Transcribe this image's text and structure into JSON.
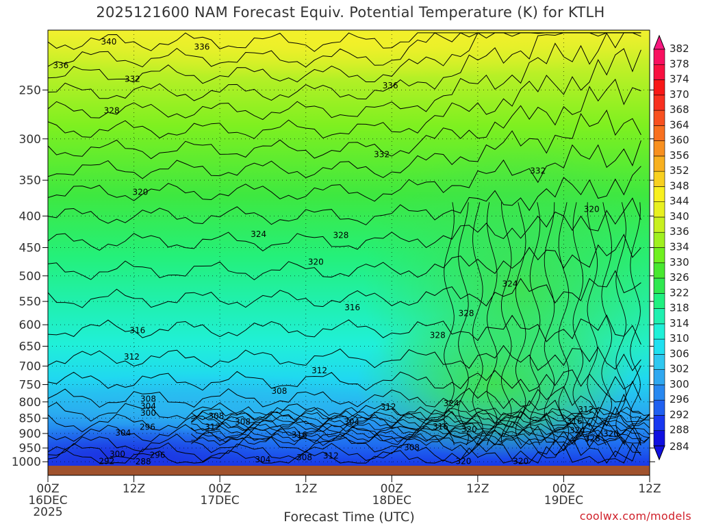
{
  "chart_data": {
    "type": "heatmap",
    "title": "2025121600 NAM Forecast Equiv. Potential Temperature (K) for KTLH",
    "xlabel": "Forecast Time (UTC)",
    "ylabel": "",
    "credit": "coolwx.com/models",
    "x_ticks": [
      {
        "hour": 0,
        "lines": [
          "00Z",
          "16DEC",
          "2025"
        ]
      },
      {
        "hour": 12,
        "lines": [
          "12Z"
        ]
      },
      {
        "hour": 24,
        "lines": [
          "00Z",
          "17DEC"
        ]
      },
      {
        "hour": 36,
        "lines": [
          "12Z"
        ]
      },
      {
        "hour": 48,
        "lines": [
          "00Z",
          "18DEC"
        ]
      },
      {
        "hour": 60,
        "lines": [
          "12Z"
        ]
      },
      {
        "hour": 72,
        "lines": [
          "00Z",
          "19DEC"
        ]
      },
      {
        "hour": 84,
        "lines": [
          "12Z"
        ]
      }
    ],
    "xlim": [
      0,
      84
    ],
    "y_ticks": [
      250,
      300,
      350,
      400,
      450,
      500,
      550,
      600,
      650,
      700,
      750,
      800,
      850,
      900,
      950,
      1000
    ],
    "ylim": [
      1015,
      200
    ],
    "y_scale": "log",
    "grid": true,
    "colorbar_levels": [
      284,
      288,
      292,
      296,
      300,
      302,
      306,
      310,
      314,
      318,
      322,
      326,
      330,
      334,
      336,
      340,
      344,
      348,
      352,
      356,
      360,
      364,
      368,
      370,
      374,
      378,
      382
    ],
    "colorbar_colors": [
      "#1010e0",
      "#1838f0",
      "#2060f0",
      "#2888f0",
      "#30a8f0",
      "#30c8f0",
      "#20e0f0",
      "#20f0d8",
      "#20f0b0",
      "#20f080",
      "#30e850",
      "#48e830",
      "#70f020",
      "#a0f020",
      "#c8f020",
      "#e8f020",
      "#f8f020",
      "#f8d020",
      "#f8b020",
      "#f89020",
      "#f87020",
      "#f85020",
      "#f83020",
      "#f81818",
      "#f81040",
      "#f81060",
      "#f81880"
    ],
    "contour_labels": [
      {
        "text": "340",
        "hour": 8.5,
        "p": 209
      },
      {
        "text": "336",
        "hour": 21.5,
        "p": 213
      },
      {
        "text": "336",
        "hour": 1.8,
        "p": 228
      },
      {
        "text": "332",
        "hour": 11.8,
        "p": 240
      },
      {
        "text": "336",
        "hour": 47.8,
        "p": 246
      },
      {
        "text": "328",
        "hour": 8.9,
        "p": 270
      },
      {
        "text": "332",
        "hour": 46.6,
        "p": 318
      },
      {
        "text": "332",
        "hour": 68.4,
        "p": 338
      },
      {
        "text": "320",
        "hour": 12.9,
        "p": 366
      },
      {
        "text": "320",
        "hour": 75.9,
        "p": 390
      },
      {
        "text": "324",
        "hour": 29.4,
        "p": 428
      },
      {
        "text": "328",
        "hour": 40.9,
        "p": 430
      },
      {
        "text": "320",
        "hour": 37.4,
        "p": 475
      },
      {
        "text": "324",
        "hour": 64.5,
        "p": 515
      },
      {
        "text": "328",
        "hour": 58.4,
        "p": 575
      },
      {
        "text": "316",
        "hour": 42.5,
        "p": 563
      },
      {
        "text": "316",
        "hour": 12.5,
        "p": 613
      },
      {
        "text": "328",
        "hour": 54.4,
        "p": 624
      },
      {
        "text": "312",
        "hour": 11.7,
        "p": 676
      },
      {
        "text": "312",
        "hour": 37.9,
        "p": 712
      },
      {
        "text": "308",
        "hour": 32.3,
        "p": 768
      },
      {
        "text": "308",
        "hour": 14.0,
        "p": 791
      },
      {
        "text": "304",
        "hour": 14.0,
        "p": 813
      },
      {
        "text": "300",
        "hour": 14.0,
        "p": 834
      },
      {
        "text": "324",
        "hour": 56.3,
        "p": 804
      },
      {
        "text": "312",
        "hour": 47.5,
        "p": 815
      },
      {
        "text": "308",
        "hour": 23.5,
        "p": 843
      },
      {
        "text": "308",
        "hour": 27.2,
        "p": 862
      },
      {
        "text": "296",
        "hour": 13.9,
        "p": 879
      },
      {
        "text": "312",
        "hour": 23.0,
        "p": 879
      },
      {
        "text": "304",
        "hour": 10.5,
        "p": 898
      },
      {
        "text": "316",
        "hour": 35.1,
        "p": 905
      },
      {
        "text": "304",
        "hour": 42.4,
        "p": 862
      },
      {
        "text": "316",
        "hour": 54.8,
        "p": 877
      },
      {
        "text": "320",
        "hour": 58.8,
        "p": 886
      },
      {
        "text": "316",
        "hour": 73.5,
        "p": 860
      },
      {
        "text": "312",
        "hour": 75.1,
        "p": 823
      },
      {
        "text": "324",
        "hour": 73.9,
        "p": 890
      },
      {
        "text": "320",
        "hour": 78.6,
        "p": 901
      },
      {
        "text": "328",
        "hour": 76.0,
        "p": 918
      },
      {
        "text": "308",
        "hour": 50.8,
        "p": 948
      },
      {
        "text": "300",
        "hour": 9.7,
        "p": 972
      },
      {
        "text": "296",
        "hour": 15.3,
        "p": 976
      },
      {
        "text": "308",
        "hour": 35.8,
        "p": 984
      },
      {
        "text": "312",
        "hour": 39.5,
        "p": 978
      },
      {
        "text": "304",
        "hour": 30.0,
        "p": 992
      },
      {
        "text": "320",
        "hour": 58.0,
        "p": 998
      },
      {
        "text": "320",
        "hour": 66.0,
        "p": 998
      },
      {
        "text": "292",
        "hour": 8.2,
        "p": 998
      },
      {
        "text": "288",
        "hour": 13.3,
        "p": 999
      }
    ]
  }
}
